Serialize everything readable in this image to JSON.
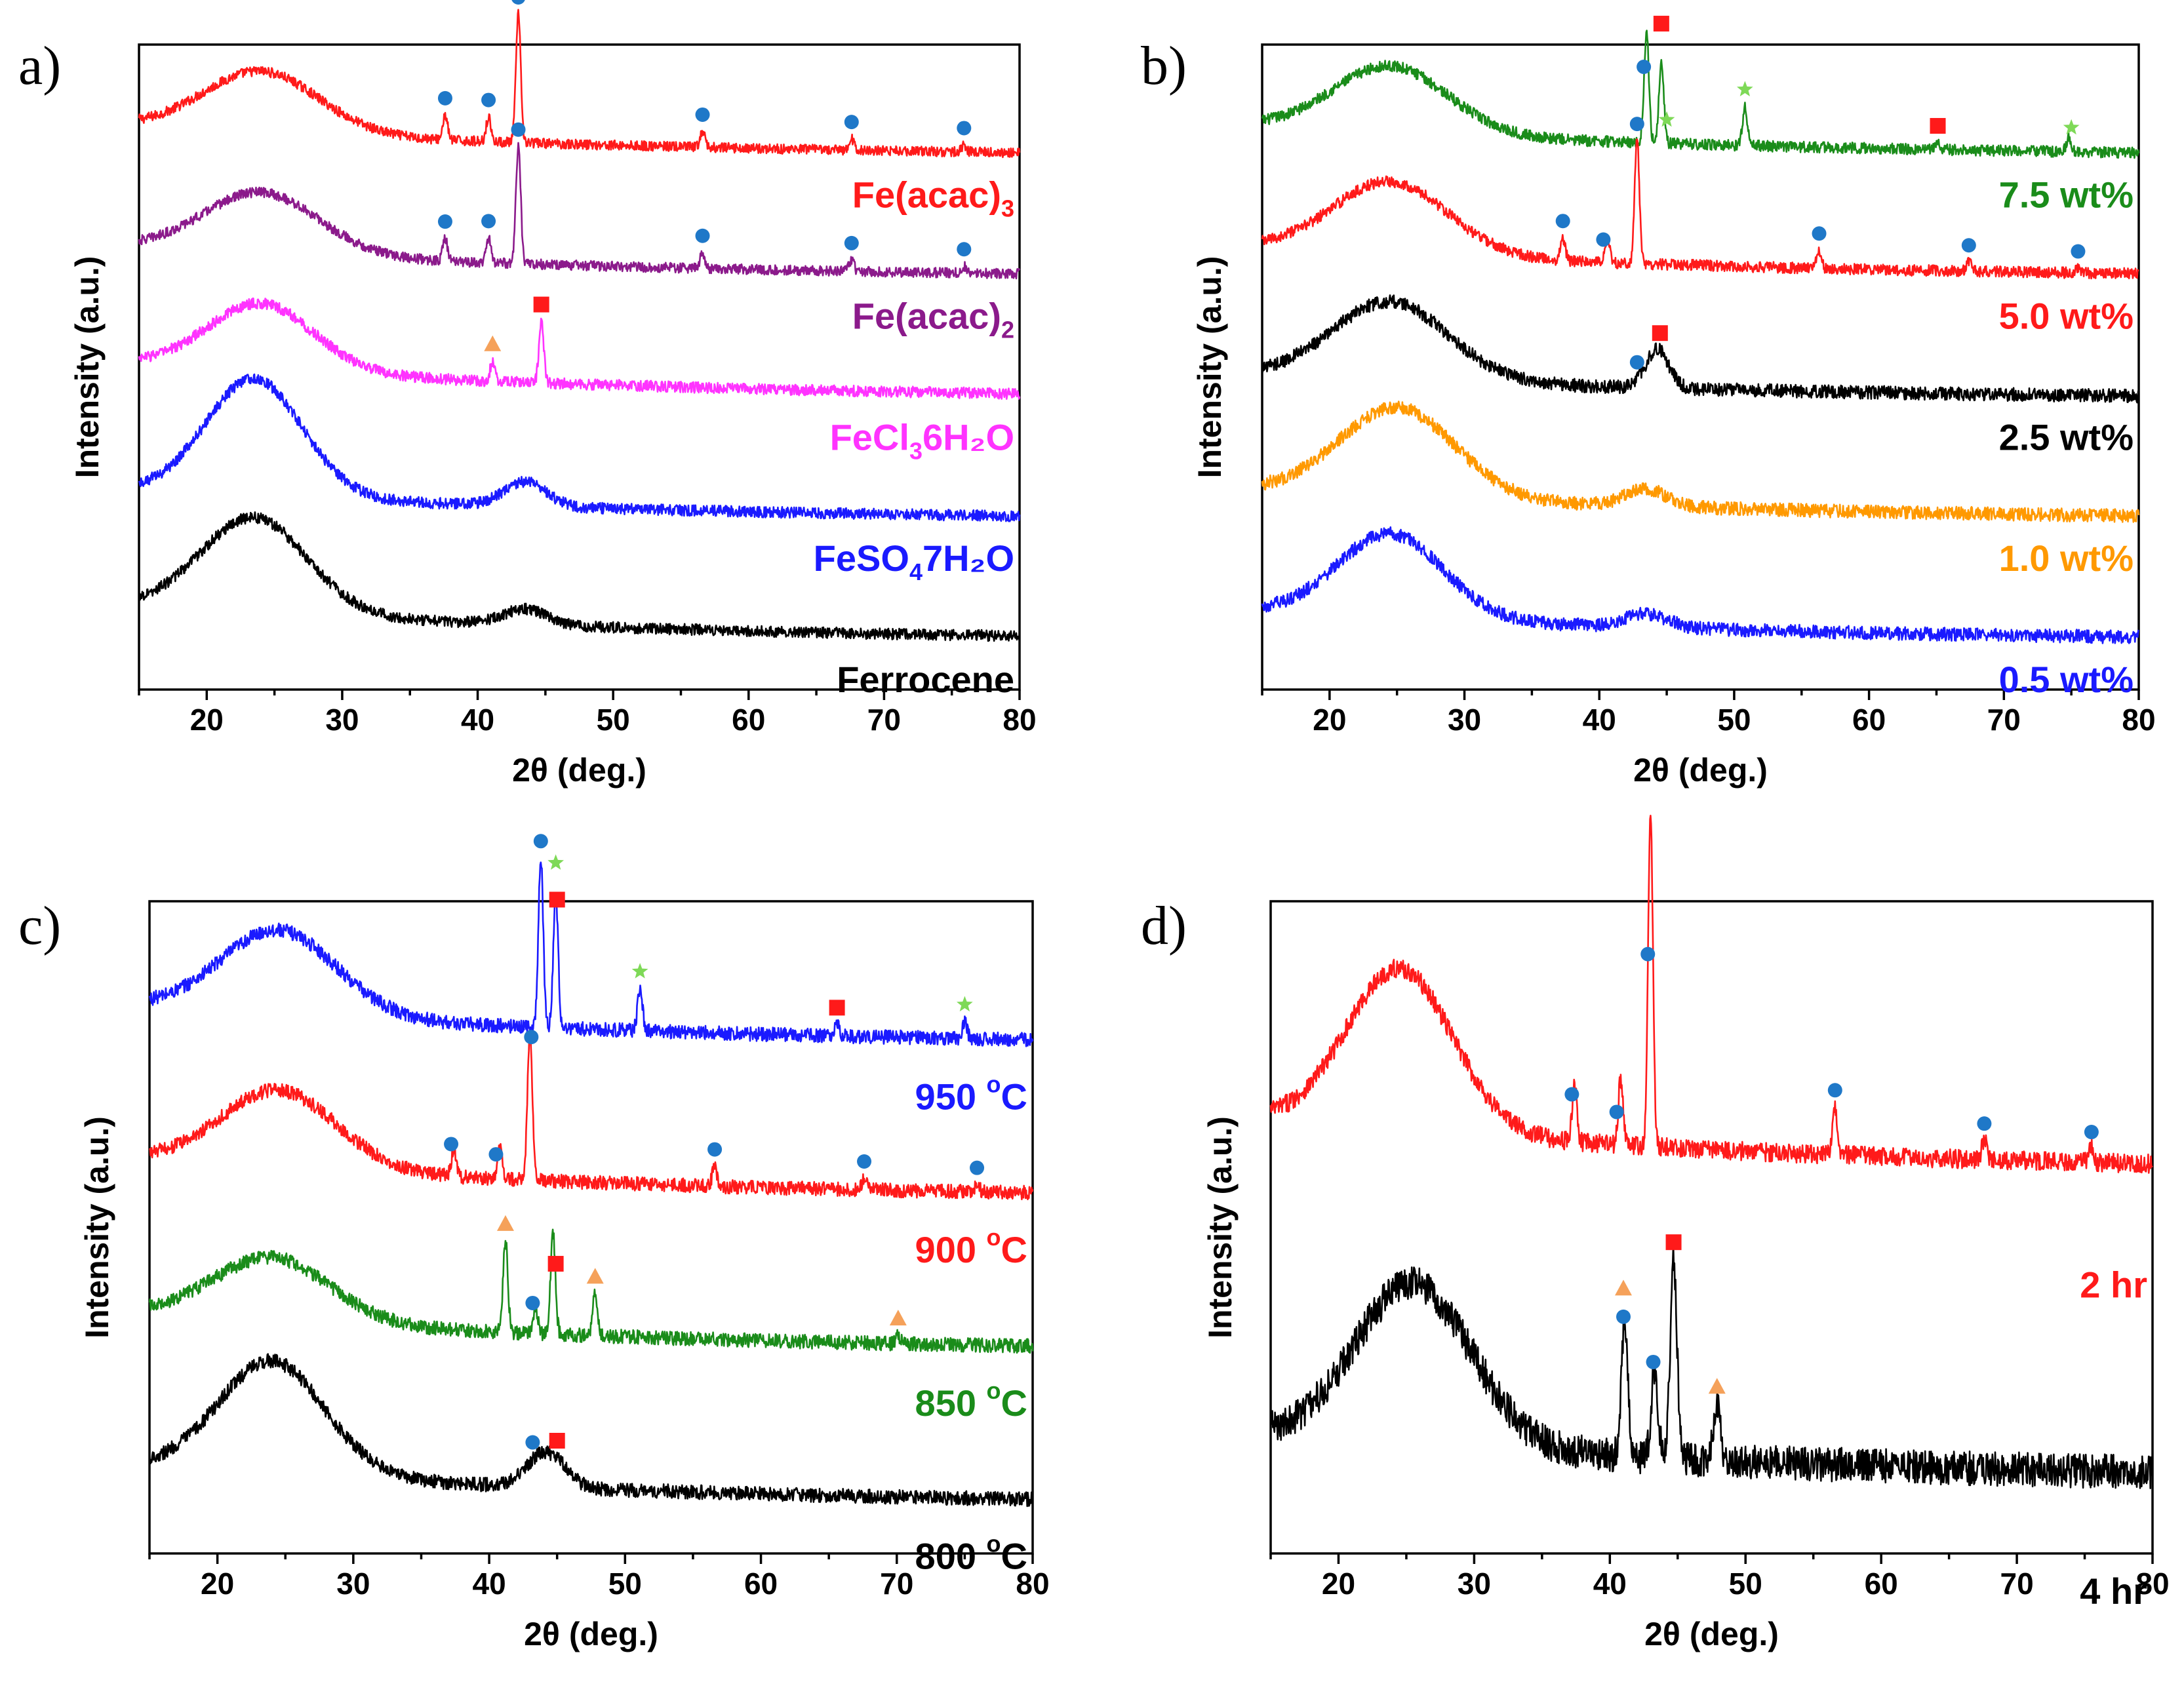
{
  "colors": {
    "red": "#ff1a1a",
    "purple": "#8b1a8b",
    "magenta": "#ff33ff",
    "blue": "#1a1aff",
    "black": "#000000",
    "green": "#1a8c1a",
    "orange": "#ff9900",
    "marker_circle": "#1f78c8",
    "marker_square": "#ff1a1a",
    "marker_triangle": "#f5a15a",
    "marker_star": "#7ed957"
  },
  "legend_marker_icons": [
    "circle-marker-icon",
    "square-marker-icon",
    "triangle-marker-icon",
    "star-marker-icon"
  ],
  "chart_data": [
    {
      "panel": "a)",
      "type": "line",
      "xlabel_prefix": "2θ",
      "xlabel_suffix": "(deg.)",
      "ylabel": "Intensity (a.u.)",
      "xlim": [
        15,
        80
      ],
      "xticks": [
        20,
        30,
        40,
        50,
        60,
        70,
        80
      ],
      "series": [
        {
          "name": "Fe(acac)3",
          "label_main": "Fe(acac)",
          "label_sub": "3",
          "label_end": "",
          "color": "red",
          "offset": 4,
          "hump_center": 24,
          "hump_height": 0.55,
          "hump_width": 6,
          "baseline_start": 0.3,
          "noise": 0.045,
          "peaks": [
            [
              37.6,
              0.22
            ],
            [
              40.8,
              0.22
            ],
            [
              43.0,
              1.15
            ],
            [
              56.6,
              0.14
            ],
            [
              67.6,
              0.1
            ],
            [
              75.9,
              0.06
            ]
          ],
          "markers": [
            {
              "type": "circle",
              "x": 37.6
            },
            {
              "type": "circle",
              "x": 40.8
            },
            {
              "type": "circle",
              "x": 43.0
            },
            {
              "type": "circle",
              "x": 56.6
            },
            {
              "type": "circle",
              "x": 67.6
            },
            {
              "type": "circle",
              "x": 75.9
            }
          ]
        },
        {
          "name": "Fe(acac)2",
          "label_main": "Fe(acac)",
          "label_sub": "2",
          "label_end": "",
          "color": "purple",
          "offset": 3,
          "hump_center": 24,
          "hump_height": 0.55,
          "hump_width": 6,
          "baseline_start": 0.3,
          "noise": 0.045,
          "peaks": [
            [
              37.6,
              0.2
            ],
            [
              40.8,
              0.22
            ],
            [
              43.0,
              1.05
            ],
            [
              56.6,
              0.14
            ],
            [
              67.6,
              0.1
            ],
            [
              75.9,
              0.06
            ]
          ],
          "markers": [
            {
              "type": "circle",
              "x": 37.6
            },
            {
              "type": "circle",
              "x": 40.8
            },
            {
              "type": "circle",
              "x": 43.0
            },
            {
              "type": "circle",
              "x": 56.6
            },
            {
              "type": "circle",
              "x": 67.6
            },
            {
              "type": "circle",
              "x": 75.9
            }
          ]
        },
        {
          "name": "FeCl36H2O",
          "label_main": "FeCl",
          "label_sub": "3",
          "label_end": "6H₂O",
          "color": "magenta",
          "offset": 2,
          "hump_center": 24,
          "hump_height": 0.6,
          "hump_width": 5.5,
          "baseline_start": 0.35,
          "noise": 0.05,
          "peaks": [
            [
              41.1,
              0.18
            ],
            [
              44.7,
              0.55
            ]
          ],
          "markers": [
            {
              "type": "triangle",
              "x": 41.1
            },
            {
              "type": "square",
              "x": 44.7
            }
          ]
        },
        {
          "name": "FeSO47H2O",
          "label_main": "FeSO",
          "label_sub": "4",
          "label_end": "7H₂O",
          "color": "blue",
          "offset": 1,
          "hump_center": 23.5,
          "hump_height": 1.05,
          "hump_width": 5,
          "baseline_start": 0.3,
          "noise": 0.05,
          "peaks": [
            [
              43.5,
              0.22
            ]
          ],
          "peak_width": 2.2,
          "markers": []
        },
        {
          "name": "Ferrocene",
          "label_main": "Ferrocene",
          "label_sub": "",
          "label_end": "",
          "color": "black",
          "offset": 0,
          "hump_center": 23.5,
          "hump_height": 0.85,
          "hump_width": 5.5,
          "baseline_start": 0.35,
          "noise": 0.05,
          "peaks": [
            [
              43.5,
              0.14
            ]
          ],
          "peak_width": 2.2,
          "markers": []
        }
      ]
    },
    {
      "panel": "b)",
      "type": "line",
      "xlabel_prefix": "2θ",
      "xlabel_suffix": "(deg.)",
      "ylabel": "Intensity (a.u.)",
      "xlim": [
        15,
        80
      ],
      "xticks": [
        20,
        30,
        40,
        50,
        60,
        70,
        80
      ],
      "series": [
        {
          "name": "7.5 wt%",
          "label_main": "7.5 wt%",
          "label_sub": "",
          "label_end": "",
          "color": "green",
          "offset": 4,
          "hump_center": 24.5,
          "hump_height": 0.6,
          "hump_width": 6,
          "baseline_start": 0.3,
          "noise": 0.05,
          "peaks": [
            [
              43.5,
              1.0
            ],
            [
              44.6,
              0.75
            ],
            [
              50.8,
              0.35
            ],
            [
              65.1,
              0.06
            ],
            [
              74.8,
              0.12
            ]
          ],
          "markers": [
            {
              "type": "circle",
              "x": 43.3
            },
            {
              "type": "star",
              "x": 45.0
            },
            {
              "type": "square",
              "x": 44.6,
              "dy": 0.17
            },
            {
              "type": "star",
              "x": 50.8
            },
            {
              "type": "square",
              "x": 65.1
            },
            {
              "type": "star",
              "x": 75.0
            }
          ]
        },
        {
          "name": "5.0 wt%",
          "label_main": "5.0 wt%",
          "label_sub": "",
          "label_end": "",
          "color": "red",
          "offset": 3,
          "hump_center": 24.5,
          "hump_height": 0.65,
          "hump_width": 6,
          "baseline_start": 0.3,
          "noise": 0.05,
          "peaks": [
            [
              37.3,
              0.2
            ],
            [
              40.6,
              0.22
            ],
            [
              42.8,
              1.1
            ],
            [
              56.3,
              0.16
            ],
            [
              67.4,
              0.08
            ],
            [
              75.5,
              0.04
            ]
          ],
          "markers": [
            {
              "type": "circle",
              "x": 42.8
            },
            {
              "type": "circle",
              "x": 37.3
            },
            {
              "type": "circle",
              "x": 40.3
            },
            {
              "type": "circle",
              "x": 56.3
            },
            {
              "type": "circle",
              "x": 67.4
            },
            {
              "type": "circle",
              "x": 75.5
            }
          ]
        },
        {
          "name": "2.5 wt%",
          "label_main": "2.5 wt%",
          "label_sub": "",
          "label_end": "",
          "color": "black",
          "offset": 2,
          "hump_center": 24.5,
          "hump_height": 0.7,
          "hump_width": 6,
          "baseline_start": 0.25,
          "noise": 0.06,
          "peaks": [
            [
              44.3,
              0.35
            ]
          ],
          "peak_width": 1.2,
          "markers": [
            {
              "type": "circle",
              "x": 42.8
            },
            {
              "type": "square",
              "x": 44.5
            }
          ]
        },
        {
          "name": "1.0 wt%",
          "label_main": "1.0 wt%",
          "label_sub": "",
          "label_end": "",
          "color": "orange",
          "offset": 1,
          "hump_center": 25,
          "hump_height": 0.8,
          "hump_width": 6,
          "baseline_start": 0.3,
          "noise": 0.06,
          "peaks": [
            [
              43.5,
              0.15
            ]
          ],
          "peak_width": 2.2,
          "markers": []
        },
        {
          "name": "0.5 wt%",
          "label_main": "0.5 wt%",
          "label_sub": "",
          "label_end": "",
          "color": "blue",
          "offset": 0,
          "hump_center": 24.5,
          "hump_height": 0.75,
          "hump_width": 5.5,
          "baseline_start": 0.3,
          "noise": 0.06,
          "peaks": [
            [
              43.5,
              0.12
            ]
          ],
          "peak_width": 2.2,
          "markers": []
        }
      ]
    },
    {
      "panel": "c)",
      "type": "line",
      "xlabel_prefix": "2θ",
      "xlabel_suffix": "(deg.)",
      "ylabel": "Intensity (a.u.)",
      "xlim": [
        15,
        80
      ],
      "xticks": [
        20,
        30,
        40,
        50,
        60,
        70,
        80
      ],
      "series": [
        {
          "name": "950 °C",
          "label_main": "950 ",
          "label_sup": "o",
          "label_end": "C",
          "color": "blue",
          "offset": 3,
          "hump_center": 24.5,
          "hump_height": 0.6,
          "hump_width": 6,
          "baseline_start": 0.3,
          "noise": 0.05,
          "peaks": [
            [
              43.8,
              1.2
            ],
            [
              44.9,
              0.95
            ],
            [
              51.1,
              0.3
            ],
            [
              65.6,
              0.08
            ],
            [
              75.0,
              0.12
            ]
          ],
          "markers": [
            {
              "type": "circle",
              "x": 43.8
            },
            {
              "type": "star",
              "x": 44.9,
              "dy": 0.1
            },
            {
              "type": "square",
              "x": 45.0,
              "dy": -0.02
            },
            {
              "type": "star",
              "x": 51.1
            },
            {
              "type": "square",
              "x": 65.6
            },
            {
              "type": "star",
              "x": 75.0
            }
          ]
        },
        {
          "name": "900 °C",
          "label_main": "900 ",
          "label_sup": "o",
          "label_end": "C",
          "color": "red",
          "offset": 2,
          "hump_center": 24.5,
          "hump_height": 0.55,
          "hump_width": 6,
          "baseline_start": 0.3,
          "noise": 0.05,
          "peaks": [
            [
              37.4,
              0.2
            ],
            [
              40.8,
              0.22
            ],
            [
              43.0,
              1.05
            ],
            [
              56.6,
              0.14
            ],
            [
              67.6,
              0.08
            ],
            [
              75.9,
              0.05
            ]
          ],
          "markers": [
            {
              "type": "circle",
              "x": 43.1
            },
            {
              "type": "circle",
              "x": 37.2
            },
            {
              "type": "circle",
              "x": 40.5
            },
            {
              "type": "circle",
              "x": 56.6
            },
            {
              "type": "circle",
              "x": 67.6
            },
            {
              "type": "circle",
              "x": 75.9
            }
          ]
        },
        {
          "name": "850 °C",
          "label_main": "850 ",
          "label_sup": "o",
          "label_end": "C",
          "color": "green",
          "offset": 1,
          "hump_center": 24,
          "hump_height": 0.45,
          "hump_width": 6,
          "baseline_start": 0.3,
          "noise": 0.05,
          "peaks": [
            [
              41.2,
              0.65
            ],
            [
              43.4,
              0.18
            ],
            [
              44.7,
              0.72
            ],
            [
              47.8,
              0.3
            ],
            [
              70.1,
              0.06
            ]
          ],
          "markers": [
            {
              "type": "triangle",
              "x": 41.2
            },
            {
              "type": "circle",
              "x": 43.2
            },
            {
              "type": "square",
              "x": 44.9
            },
            {
              "type": "triangle",
              "x": 47.8
            },
            {
              "type": "triangle",
              "x": 70.1
            }
          ]
        },
        {
          "name": "800 °C",
          "label_main": "800 ",
          "label_sup": "o",
          "label_end": "C",
          "color": "black",
          "offset": 0,
          "hump_center": 24,
          "hump_height": 0.8,
          "hump_width": 5.5,
          "baseline_start": 0.3,
          "noise": 0.05,
          "peaks": [
            [
              43.5,
              0.15
            ],
            [
              44.9,
              0.15
            ]
          ],
          "peak_width": 1.6,
          "markers": [
            {
              "type": "circle",
              "x": 43.2
            },
            {
              "type": "square",
              "x": 45.0
            }
          ]
        }
      ]
    },
    {
      "panel": "d)",
      "type": "line",
      "xlabel_prefix": "2θ",
      "xlabel_suffix": "(deg.)",
      "ylabel": "Intensity (a.u.)",
      "xlim": [
        15,
        80
      ],
      "xticks": [
        20,
        30,
        40,
        50,
        60,
        70,
        80
      ],
      "series": [
        {
          "name": "2 hr",
          "label_main": "2 hr",
          "label_sub": "",
          "label_end": "",
          "color": "red",
          "offset": 1,
          "hump_center": 24.5,
          "hump_height": 0.85,
          "hump_width": 5.5,
          "baseline_start": 0.3,
          "noise": 0.05,
          "peaks": [
            [
              37.4,
              0.3
            ],
            [
              40.8,
              0.35
            ],
            [
              43.0,
              1.75
            ],
            [
              56.6,
              0.25
            ],
            [
              67.6,
              0.1
            ],
            [
              75.5,
              0.07
            ]
          ],
          "markers": [
            {
              "type": "circle",
              "x": 42.8
            },
            {
              "type": "circle",
              "x": 37.2
            },
            {
              "type": "circle",
              "x": 40.5
            },
            {
              "type": "circle",
              "x": 56.6
            },
            {
              "type": "circle",
              "x": 67.6
            },
            {
              "type": "circle",
              "x": 75.5
            }
          ]
        },
        {
          "name": "4 hr",
          "label_main": "4 hr",
          "label_sub": "",
          "label_end": "",
          "color": "black",
          "offset": 0,
          "hump_center": 25.5,
          "hump_height": 0.85,
          "hump_width": 6,
          "baseline_start": 0.25,
          "noise": 0.09,
          "peaks": [
            [
              41.1,
              0.7
            ],
            [
              43.3,
              0.45
            ],
            [
              44.7,
              1.05
            ],
            [
              47.9,
              0.3
            ]
          ],
          "peak_width": 0.35,
          "markers": [
            {
              "type": "triangle",
              "x": 41.0,
              "dy": 0.15
            },
            {
              "type": "circle",
              "x": 41.0
            },
            {
              "type": "circle",
              "x": 43.2
            },
            {
              "type": "square",
              "x": 44.7
            },
            {
              "type": "triangle",
              "x": 47.9
            }
          ]
        }
      ]
    }
  ]
}
